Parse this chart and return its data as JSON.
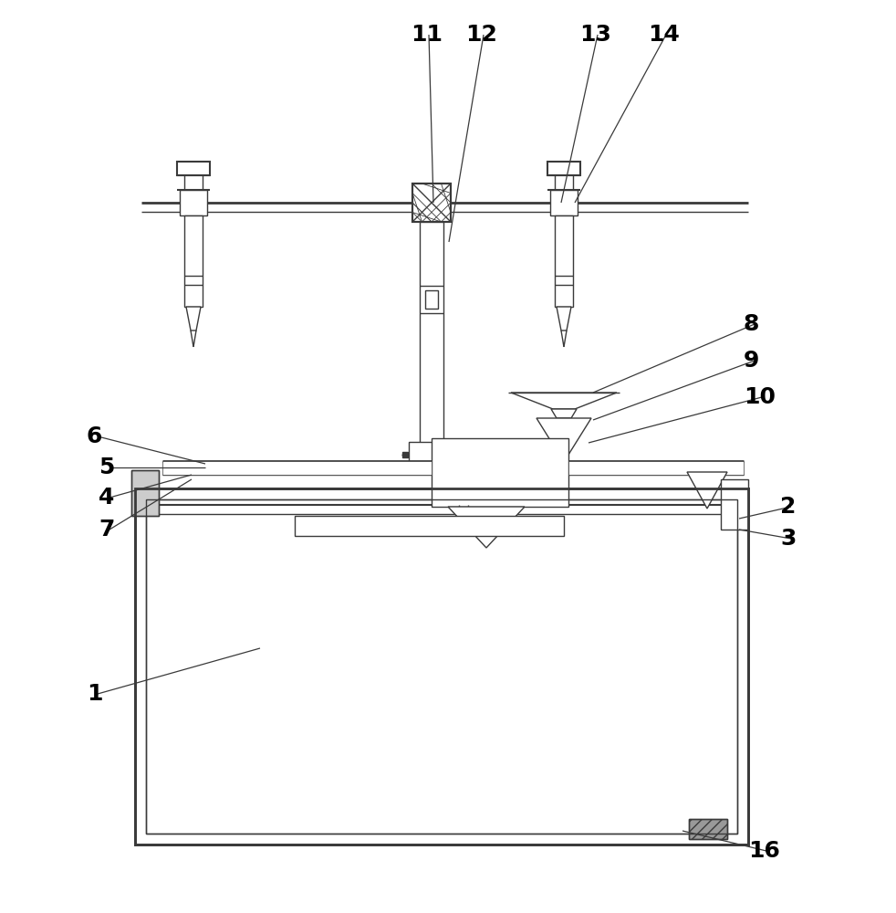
{
  "bg_color": "#ffffff",
  "lc": "#3a3a3a",
  "lw": 1.5,
  "tlw": 1.0,
  "thklw": 2.0,
  "lfs": 18,
  "lcolor": "#000000",
  "annotations": [
    [
      "1",
      95,
      760,
      285,
      710
    ],
    [
      "2",
      855,
      555,
      810,
      568
    ],
    [
      "3",
      855,
      590,
      810,
      580
    ],
    [
      "4",
      108,
      545,
      210,
      520
    ],
    [
      "5",
      108,
      512,
      225,
      512
    ],
    [
      "6",
      95,
      478,
      225,
      508
    ],
    [
      "7",
      108,
      580,
      210,
      525
    ],
    [
      "8",
      815,
      355,
      650,
      430
    ],
    [
      "9",
      815,
      395,
      650,
      460
    ],
    [
      "10",
      815,
      435,
      645,
      485
    ],
    [
      "11",
      450,
      38,
      475,
      222
    ],
    [
      "12",
      510,
      38,
      492,
      265
    ],
    [
      "13",
      635,
      38,
      615,
      222
    ],
    [
      "14",
      710,
      38,
      630,
      222
    ],
    [
      "16",
      820,
      932,
      748,
      910
    ]
  ]
}
